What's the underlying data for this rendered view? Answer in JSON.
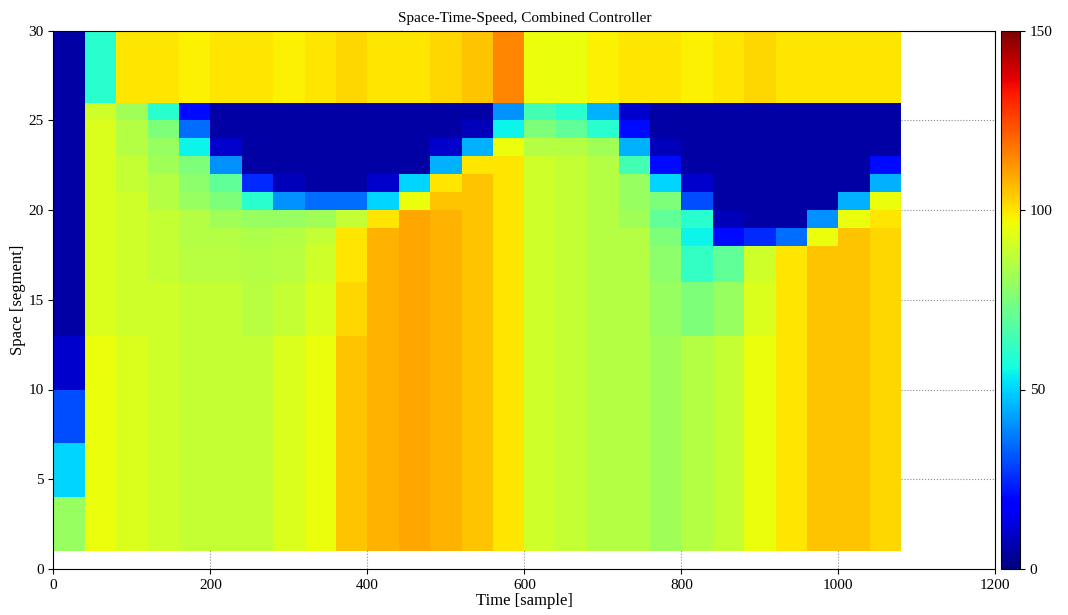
{
  "chart_data": {
    "type": "heatmap",
    "title": "Space-Time-Speed, Combined Controller",
    "x_label": "Time [sample]",
    "y_label": "Space [segment]",
    "xlim": [
      0,
      1200
    ],
    "xticks": [
      0,
      200,
      400,
      600,
      800,
      1000,
      1200
    ],
    "ylim": [
      0,
      30
    ],
    "yticks": [
      0,
      5,
      10,
      15,
      20,
      25,
      30
    ],
    "grid": true,
    "color": "jet",
    "time_edges": [
      0,
      40,
      80,
      120,
      160,
      200,
      240,
      280,
      320,
      360,
      400,
      440,
      480,
      520,
      560,
      600,
      640,
      680,
      720,
      760,
      800,
      840,
      880,
      920,
      960,
      1000,
      1040,
      1080
    ],
    "space_edges": [
      1,
      4,
      7,
      10,
      13,
      16,
      18,
      19,
      20,
      21,
      22,
      23,
      24,
      25,
      26,
      30
    ],
    "cells": [
      [
        80,
        95,
        92,
        90,
        88,
        88,
        88,
        92,
        95,
        105,
        108,
        110,
        108,
        105,
        100,
        90,
        88,
        85,
        85,
        82,
        85,
        88,
        95,
        100,
        105,
        105,
        102
      ],
      [
        50,
        95,
        92,
        90,
        88,
        88,
        88,
        92,
        95,
        105,
        108,
        110,
        108,
        105,
        100,
        90,
        88,
        85,
        85,
        82,
        85,
        88,
        95,
        100,
        105,
        105,
        102
      ],
      [
        30,
        95,
        92,
        90,
        88,
        88,
        88,
        92,
        95,
        105,
        108,
        110,
        108,
        105,
        100,
        90,
        88,
        85,
        85,
        82,
        85,
        88,
        95,
        100,
        105,
        105,
        102
      ],
      [
        10,
        95,
        92,
        90,
        88,
        88,
        88,
        92,
        95,
        105,
        108,
        110,
        108,
        105,
        100,
        90,
        88,
        85,
        85,
        82,
        85,
        88,
        95,
        100,
        105,
        105,
        102
      ],
      [
        5,
        92,
        90,
        90,
        88,
        88,
        86,
        88,
        92,
        102,
        108,
        110,
        108,
        105,
        100,
        90,
        88,
        85,
        85,
        80,
        75,
        80,
        92,
        100,
        105,
        105,
        102
      ],
      [
        5,
        92,
        90,
        88,
        86,
        86,
        85,
        86,
        90,
        100,
        108,
        110,
        108,
        105,
        100,
        90,
        88,
        85,
        85,
        78,
        62,
        70,
        90,
        100,
        105,
        105,
        102
      ],
      [
        5,
        92,
        90,
        88,
        85,
        85,
        84,
        85,
        88,
        100,
        108,
        110,
        108,
        105,
        100,
        90,
        88,
        85,
        85,
        75,
        55,
        20,
        25,
        35,
        95,
        105,
        102
      ],
      [
        5,
        92,
        90,
        88,
        85,
        82,
        80,
        80,
        82,
        88,
        100,
        110,
        108,
        105,
        100,
        90,
        88,
        85,
        82,
        70,
        60,
        8,
        5,
        5,
        40,
        95,
        100
      ],
      [
        5,
        92,
        90,
        85,
        80,
        75,
        60,
        40,
        35,
        35,
        50,
        95,
        105,
        105,
        100,
        90,
        88,
        85,
        80,
        75,
        30,
        5,
        5,
        5,
        5,
        45,
        95
      ],
      [
        5,
        92,
        88,
        85,
        78,
        70,
        25,
        8,
        5,
        5,
        10,
        50,
        100,
        105,
        100,
        90,
        88,
        85,
        80,
        50,
        10,
        5,
        5,
        5,
        5,
        5,
        45
      ],
      [
        5,
        92,
        88,
        82,
        75,
        40,
        5,
        5,
        5,
        5,
        5,
        5,
        45,
        100,
        100,
        90,
        88,
        85,
        65,
        20,
        5,
        5,
        5,
        5,
        5,
        5,
        20
      ],
      [
        5,
        92,
        85,
        80,
        55,
        10,
        5,
        5,
        5,
        5,
        5,
        5,
        10,
        45,
        95,
        85,
        85,
        82,
        45,
        8,
        5,
        5,
        5,
        5,
        5,
        5,
        5
      ],
      [
        5,
        92,
        85,
        75,
        35,
        5,
        5,
        5,
        5,
        5,
        5,
        5,
        5,
        8,
        55,
        75,
        70,
        60,
        20,
        5,
        5,
        5,
        5,
        5,
        5,
        5,
        5
      ],
      [
        5,
        90,
        82,
        60,
        20,
        5,
        5,
        5,
        5,
        5,
        5,
        5,
        5,
        5,
        40,
        65,
        60,
        45,
        10,
        5,
        5,
        5,
        5,
        5,
        5,
        5,
        5
      ],
      [
        5,
        60,
        100,
        100,
        98,
        100,
        100,
        98,
        100,
        102,
        100,
        100,
        102,
        105,
        115,
        95,
        95,
        98,
        100,
        100,
        98,
        100,
        102,
        100,
        100,
        100,
        100
      ]
    ],
    "colorbar_lim": [
      0,
      150
    ],
    "colorbar_ticks": [
      0,
      50,
      100,
      150
    ]
  }
}
